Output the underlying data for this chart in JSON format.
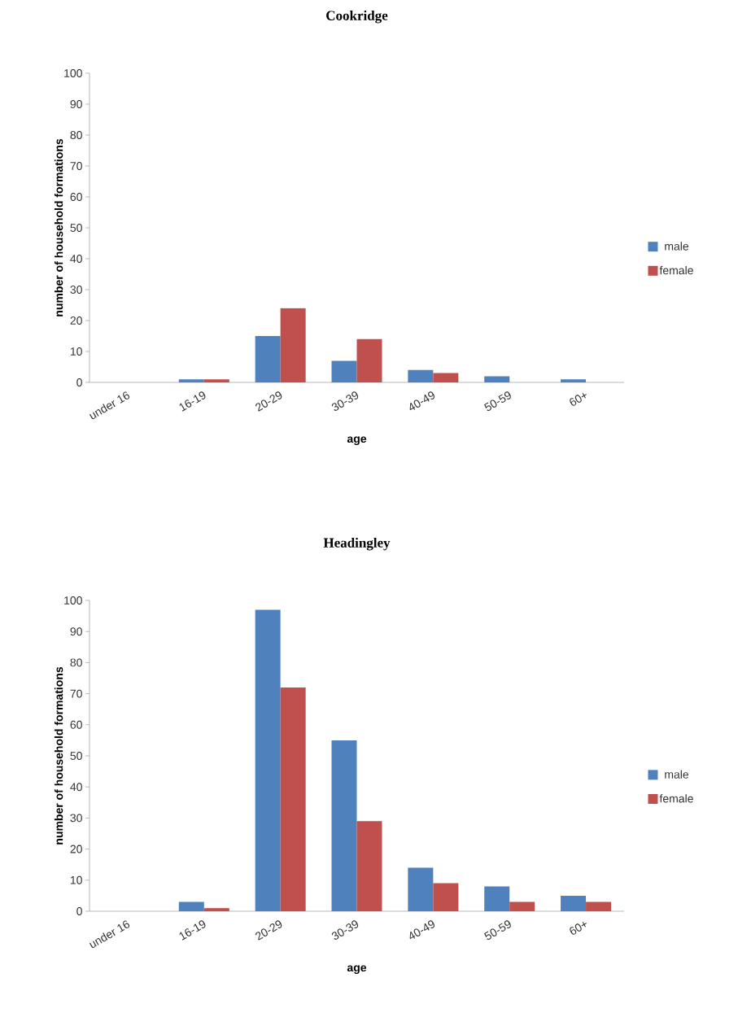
{
  "chart_data": [
    {
      "type": "bar",
      "title": "Cookridge",
      "xlabel": "age",
      "ylabel": "number of household formations",
      "categories": [
        "under 16",
        "16-19",
        "20-29",
        "30-39",
        "40-49",
        "50-59",
        "60+"
      ],
      "series": [
        {
          "name": "male",
          "color": "#4f81bd",
          "values": [
            0,
            1,
            15,
            7,
            4,
            2,
            1
          ]
        },
        {
          "name": "female",
          "color": "#c0504d",
          "values": [
            0,
            1,
            24,
            14,
            3,
            0,
            0
          ]
        }
      ],
      "ylim": [
        0,
        100
      ],
      "yticks": [
        0,
        10,
        20,
        30,
        40,
        50,
        60,
        70,
        80,
        90,
        100
      ],
      "legend": "right",
      "grid": false
    },
    {
      "type": "bar",
      "title": "Headingley",
      "xlabel": "age",
      "ylabel": "number of household formations",
      "categories": [
        "under 16",
        "16-19",
        "20-29",
        "30-39",
        "40-49",
        "50-59",
        "60+"
      ],
      "series": [
        {
          "name": "male",
          "color": "#4f81bd",
          "values": [
            0,
            3,
            97,
            55,
            14,
            8,
            5
          ]
        },
        {
          "name": "female",
          "color": "#c0504d",
          "values": [
            0,
            1,
            72,
            29,
            9,
            3,
            3
          ]
        }
      ],
      "ylim": [
        0,
        100
      ],
      "yticks": [
        0,
        10,
        20,
        30,
        40,
        50,
        60,
        70,
        80,
        90,
        100
      ],
      "legend": "right",
      "grid": false
    }
  ]
}
